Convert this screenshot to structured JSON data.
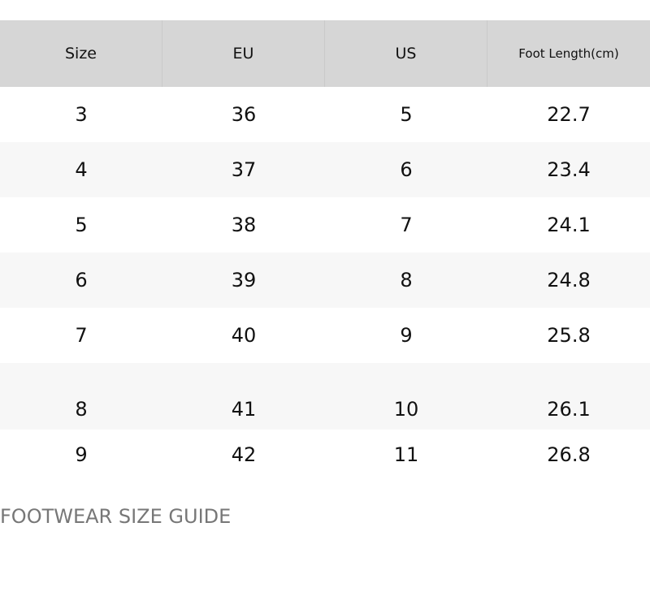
{
  "table": {
    "headers": [
      "Size",
      "EU",
      "US",
      "Foot Length(cm)"
    ],
    "rows": [
      [
        "3",
        "36",
        "5",
        "22.7"
      ],
      [
        "4",
        "37",
        "6",
        "23.4"
      ],
      [
        "5",
        "38",
        "7",
        "24.1"
      ],
      [
        "6",
        "39",
        "8",
        "24.8"
      ],
      [
        "7",
        "40",
        "9",
        "25.8"
      ],
      [
        "8",
        "41",
        "10",
        "26.1"
      ],
      [
        "9",
        "42",
        "11",
        "26.8"
      ]
    ]
  },
  "guide": {
    "title": "FOOTWEAR SIZE GUIDE"
  }
}
